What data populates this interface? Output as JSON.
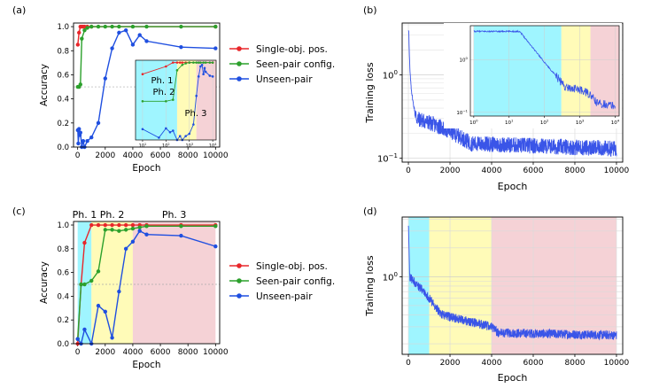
{
  "panel_labels": {
    "a": "(a)",
    "b": "(b)",
    "c": "(c)",
    "d": "(d)"
  },
  "colors": {
    "single": "#e8262a",
    "seen": "#2ca02c",
    "unseen": "#1f4fe0",
    "loss": "#3a55e8",
    "phase1": "#7ff2ff",
    "phase2": "#fffaa0",
    "phase3": "#f2c3c8"
  },
  "chart_data": [
    {
      "id": "a",
      "type": "line",
      "xlabel": "Epoch",
      "ylabel": "Accuracy",
      "xlim": [
        -300,
        10300
      ],
      "ylim": [
        0,
        1.03
      ],
      "xticks": [
        0,
        2000,
        4000,
        6000,
        8000,
        10000
      ],
      "yticks": [
        0.0,
        0.2,
        0.4,
        0.6,
        0.8,
        1.0
      ],
      "ytick_labels": [
        "0.0",
        "0.2",
        "0.4",
        "0.6",
        "0.8",
        "1.0"
      ],
      "legend": [
        "Single-obj. pos.",
        "Seen-pair config.",
        "Unseen-pair"
      ],
      "legend_position": "right-outside",
      "series": [
        {
          "name": "Single-obj. pos.",
          "color_key": "single",
          "x": [
            10,
            100,
            200,
            300,
            400,
            500,
            700,
            1000,
            10000
          ],
          "y": [
            0.85,
            0.95,
            1.0,
            1.0,
            1.0,
            1.0,
            1.0,
            1.0,
            1.0
          ]
        },
        {
          "name": "Seen-pair config.",
          "color_key": "seen",
          "x": [
            10,
            100,
            200,
            300,
            500,
            700,
            1000,
            1500,
            2000,
            2500,
            3000,
            4000,
            5000,
            7500,
            10000
          ],
          "y": [
            0.5,
            0.5,
            0.52,
            0.9,
            0.97,
            0.99,
            1.0,
            1.0,
            1.0,
            1.0,
            1.0,
            1.0,
            1.0,
            1.0,
            1.0
          ]
        },
        {
          "name": "Unseen-pair",
          "color_key": "unseen",
          "x": [
            10,
            50,
            100,
            150,
            200,
            300,
            400,
            500,
            700,
            1000,
            1500,
            2000,
            2500,
            3000,
            3500,
            4000,
            4500,
            5000,
            7500,
            10000
          ],
          "y": [
            0.14,
            0.03,
            0.15,
            0.1,
            0.12,
            0.0,
            0.05,
            0.0,
            0.05,
            0.08,
            0.2,
            0.57,
            0.82,
            0.95,
            0.97,
            0.85,
            0.93,
            0.88,
            0.83,
            0.82
          ]
        }
      ],
      "inset": {
        "xscale": "log",
        "xlim": [
          5,
          14000
        ],
        "ylim": [
          0,
          1.03
        ],
        "xtick_labels": [
          "10^1",
          "10^2",
          "10^3",
          "10^4"
        ],
        "phases": [
          {
            "label": "Ph. 1",
            "from": 5,
            "to": 300
          },
          {
            "label": "Ph. 2",
            "from": 300,
            "to": 2000
          },
          {
            "label": "Ph. 3",
            "from": 2000,
            "to": 14000
          }
        ]
      }
    },
    {
      "id": "b",
      "type": "line",
      "xlabel": "Epoch",
      "ylabel": "Training loss",
      "yscale": "log",
      "xlim": [
        -300,
        10300
      ],
      "ylim": [
        0.09,
        4.2
      ],
      "xticks": [
        0,
        2000,
        4000,
        6000,
        8000,
        10000
      ],
      "yticks": [
        0.1,
        1.0
      ],
      "ytick_labels": [
        "10^-1",
        "10^0"
      ],
      "series": [
        {
          "name": "Training loss",
          "color_key": "loss",
          "description": "starts near 3.5, falls sharply below 0.3 within ~300 epochs, then noisy plateau ~0.11–0.18"
        }
      ],
      "inset": {
        "xscale": "log",
        "yscale": "log",
        "xlim": [
          0.8,
          13000
        ],
        "ylim": [
          0.085,
          4.5
        ],
        "xtick_labels": [
          "10^0",
          "10^1",
          "10^2",
          "10^3",
          "10^4"
        ],
        "ytick_labels": [
          "10^-1",
          "10^0"
        ],
        "phases": [
          {
            "from": 1,
            "to": 300
          },
          {
            "from": 300,
            "to": 2000
          },
          {
            "from": 2000,
            "to": 13000
          }
        ]
      }
    },
    {
      "id": "c",
      "type": "line",
      "xlabel": "Epoch",
      "ylabel": "Accuracy",
      "xlim": [
        -300,
        10300
      ],
      "ylim": [
        0,
        1.03
      ],
      "xticks": [
        0,
        2000,
        4000,
        6000,
        8000,
        10000
      ],
      "yticks": [
        0.0,
        0.2,
        0.4,
        0.6,
        0.8,
        1.0
      ],
      "ytick_labels": [
        "0.0",
        "0.2",
        "0.4",
        "0.6",
        "0.8",
        "1.0"
      ],
      "legend": [
        "Single-obj. pos.",
        "Seen-pair config.",
        "Unseen-pair"
      ],
      "legend_position": "right-outside",
      "phases": [
        {
          "label": "Ph. 1",
          "from": 0,
          "to": 1000
        },
        {
          "label": "Ph. 2",
          "from": 1000,
          "to": 4000
        },
        {
          "label": "Ph. 3",
          "from": 4000,
          "to": 10000
        }
      ],
      "series": [
        {
          "name": "Single-obj. pos.",
          "color_key": "single",
          "x": [
            0,
            250,
            500,
            1000,
            1500,
            2000,
            2500,
            3000,
            3500,
            4000,
            4500,
            5000,
            7500,
            10000
          ],
          "y": [
            0.0,
            0.5,
            0.85,
            1.0,
            1.0,
            1.0,
            1.0,
            1.0,
            1.0,
            1.0,
            1.0,
            1.0,
            1.0,
            1.0
          ]
        },
        {
          "name": "Seen-pair config.",
          "color_key": "seen",
          "x": [
            0,
            250,
            500,
            1000,
            1500,
            2000,
            2500,
            3000,
            3500,
            4000,
            4500,
            5000,
            7500,
            10000
          ],
          "y": [
            0.04,
            0.5,
            0.5,
            0.53,
            0.61,
            0.96,
            0.96,
            0.95,
            0.96,
            0.97,
            0.98,
            0.99,
            0.99,
            0.99
          ]
        },
        {
          "name": "Unseen-pair",
          "color_key": "unseen",
          "x": [
            0,
            250,
            500,
            1000,
            1500,
            2000,
            2500,
            3000,
            3500,
            4000,
            4500,
            5000,
            7500,
            10000
          ],
          "y": [
            0.04,
            0.0,
            0.12,
            0.0,
            0.32,
            0.27,
            0.05,
            0.44,
            0.8,
            0.86,
            0.95,
            0.92,
            0.91,
            0.82
          ]
        }
      ]
    },
    {
      "id": "d",
      "type": "line",
      "xlabel": "Epoch",
      "ylabel": "Training loss",
      "yscale": "log",
      "xlim": [
        -300,
        10300
      ],
      "ylim": [
        0.155,
        4.2
      ],
      "xticks": [
        0,
        2000,
        4000,
        6000,
        8000,
        10000
      ],
      "yticks": [
        1.0
      ],
      "ytick_labels": [
        "10^0"
      ],
      "phases": [
        {
          "from": 0,
          "to": 1000
        },
        {
          "from": 1000,
          "to": 4000
        },
        {
          "from": 4000,
          "to": 10000
        }
      ],
      "series": [
        {
          "name": "Training loss",
          "color_key": "loss",
          "description": "starts near 3.5, fast drop to ~0.6 by 1000, drop to ~0.4 near 1500, slow decline to ~0.3 by 4000, then plateau ~0.25"
        }
      ]
    }
  ]
}
